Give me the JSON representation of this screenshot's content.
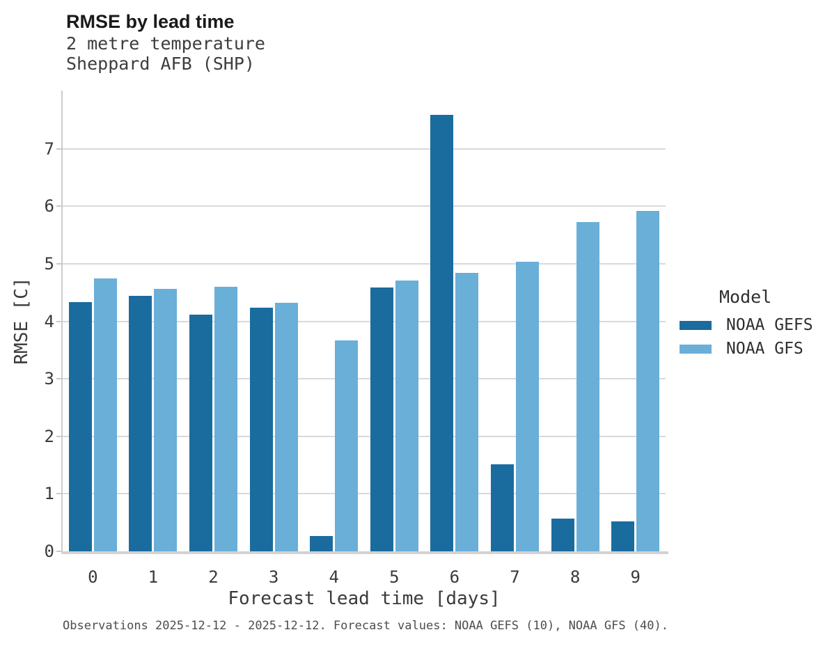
{
  "chart_data": {
    "type": "bar",
    "title": "RMSE by lead time",
    "subtitle": [
      "2 metre temperature",
      "Sheppard AFB (SHP)"
    ],
    "xlabel": "Forecast lead time [days]",
    "ylabel": "RMSE [C]",
    "categories": [
      "0",
      "1",
      "2",
      "3",
      "4",
      "5",
      "6",
      "7",
      "8",
      "9"
    ],
    "series": [
      {
        "name": "NOAA GEFS",
        "color": "#1a6c9e",
        "values": [
          4.33,
          4.44,
          4.11,
          4.24,
          0.27,
          4.59,
          7.59,
          1.51,
          0.57,
          0.52
        ]
      },
      {
        "name": "NOAA GFS",
        "color": "#69afd8",
        "values": [
          4.74,
          4.56,
          4.6,
          4.32,
          3.67,
          4.71,
          4.84,
          5.04,
          5.72,
          5.92
        ]
      }
    ],
    "ylim": [
      0,
      8
    ],
    "yticks": [
      0,
      1,
      2,
      3,
      4,
      5,
      6,
      7
    ],
    "grid": "horizontal",
    "legend_title": "Model",
    "legend_position": "right",
    "caption": "Observations 2025-12-12 - 2025-12-12. Forecast values: NOAA GEFS (10), NOAA GFS (40).",
    "colors": {
      "grid": "#d9d9d9",
      "spine": "#cccccc",
      "title_text": "#1a1a1a",
      "axis_text": "#3a3a3a",
      "caption_text": "#4d4d4d"
    }
  }
}
